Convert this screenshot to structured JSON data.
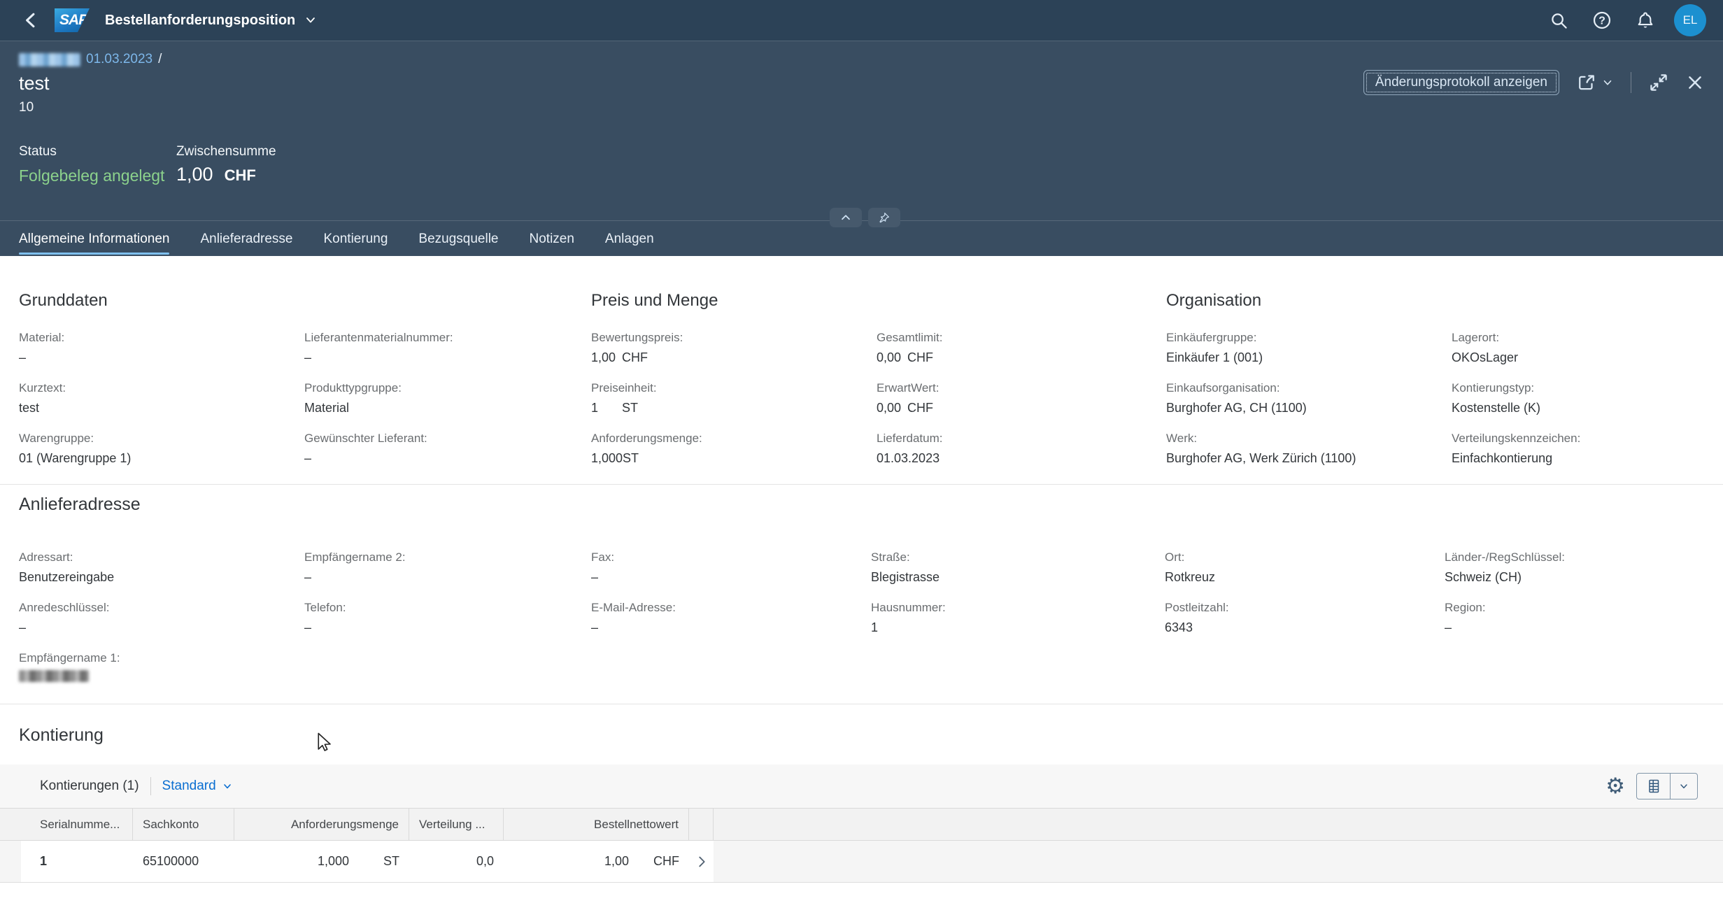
{
  "colors": {
    "shell_bg": "#2c4257",
    "header_bg": "#394d61",
    "accent_link": "#0a6ed1",
    "status_positive": "#8cd28c",
    "tab_underline": "#7fc0ee",
    "avatar_bg": "#1c90d0"
  },
  "shell": {
    "logo_text": "SAP",
    "title": "Bestellanforderungsposition",
    "avatar_initials": "EL"
  },
  "header": {
    "breadcrumb_date": "01.03.2023",
    "breadcrumb_separator": "/",
    "title": "test",
    "subtitle": "10",
    "status_label": "Status",
    "status_value": "Folgebeleg angelegt",
    "subtotal_label": "Zwischensumme",
    "subtotal_value": "1,00",
    "subtotal_unit": "CHF",
    "action_button": "Änderungsprotokoll anzeigen"
  },
  "tabs": [
    "Allgemeine Informationen",
    "Anlieferadresse",
    "Kontierung",
    "Bezugsquelle",
    "Notizen",
    "Anlagen"
  ],
  "general": {
    "groups": [
      {
        "title": "Grunddaten",
        "cols": [
          [
            {
              "label": "Material:",
              "value": "–"
            },
            {
              "label": "Kurztext:",
              "value": "test"
            },
            {
              "label": "Warengruppe:",
              "value": "01 (Warengruppe 1)"
            }
          ],
          [
            {
              "label": "Lieferantenmaterialnummer:",
              "value": "–"
            },
            {
              "label": "Produkttypgruppe:",
              "value": "Material"
            },
            {
              "label": "Gewünschter Lieferant:",
              "value": "–"
            }
          ]
        ]
      },
      {
        "title": "Preis und Menge",
        "cols": [
          [
            {
              "label": "Bewertungspreis:",
              "value": "1,00",
              "unit": "CHF"
            },
            {
              "label": "Preiseinheit:",
              "value": "1",
              "unit": "ST"
            },
            {
              "label": "Anforderungsmenge:",
              "value": "1,000",
              "unit": "ST"
            }
          ],
          [
            {
              "label": "Gesamtlimit:",
              "value": "0,00",
              "unit": "CHF"
            },
            {
              "label": "ErwartWert:",
              "value": "0,00",
              "unit": "CHF"
            },
            {
              "label": "Lieferdatum:",
              "value": "01.03.2023"
            }
          ]
        ]
      },
      {
        "title": "Organisation",
        "cols": [
          [
            {
              "label": "Einkäufergruppe:",
              "value": "Einkäufer 1 (001)"
            },
            {
              "label": "Einkaufsorganisation:",
              "value": "Burghofer AG, CH (1100)"
            },
            {
              "label": "Werk:",
              "value": "Burghofer AG, Werk Zürich (1100)"
            }
          ],
          [
            {
              "label": "Lagerort:",
              "value": "OKOsLager"
            },
            {
              "label": "Kontierungstyp:",
              "value": "Kostenstelle (K)"
            },
            {
              "label": "Verteilungskennzeichen:",
              "value": "Einfachkontierung"
            }
          ]
        ]
      }
    ]
  },
  "address": {
    "title": "Anlieferadresse",
    "cols": [
      [
        {
          "label": "Adressart:",
          "value": "Benutzereingabe"
        },
        {
          "label": "Anredeschlüssel:",
          "value": "–"
        },
        {
          "label": "Empfängername 1:",
          "value": "",
          "redacted": true
        }
      ],
      [
        {
          "label": "Empfängername 2:",
          "value": "–"
        },
        {
          "label": "Telefon:",
          "value": "–"
        }
      ],
      [
        {
          "label": "Fax:",
          "value": "–"
        },
        {
          "label": "E-Mail-Adresse:",
          "value": "–"
        }
      ],
      [
        {
          "label": "Straße:",
          "value": "Blegistrasse"
        },
        {
          "label": "Hausnummer:",
          "value": "1"
        }
      ],
      [
        {
          "label": "Ort:",
          "value": "Rotkreuz"
        },
        {
          "label": "Postleitzahl:",
          "value": "6343"
        }
      ],
      [
        {
          "label": "Länder-/RegSchlüssel:",
          "value": "Schweiz (CH)"
        },
        {
          "label": "Region:",
          "value": "–"
        }
      ]
    ]
  },
  "kontierung": {
    "title": "Kontierung",
    "table_title": "Kontierungen (1)",
    "view_selector": "Standard",
    "headers": [
      "Serialnumme...",
      "Sachkonto",
      "Anforderungsmenge",
      "Verteilung ...",
      "Bestellnettowert"
    ],
    "row": {
      "serial": "1",
      "account": "65100000",
      "qty": "1,000",
      "qty_unit": "ST",
      "distribution": "0,0",
      "net_value": "1,00",
      "currency": "CHF"
    }
  }
}
